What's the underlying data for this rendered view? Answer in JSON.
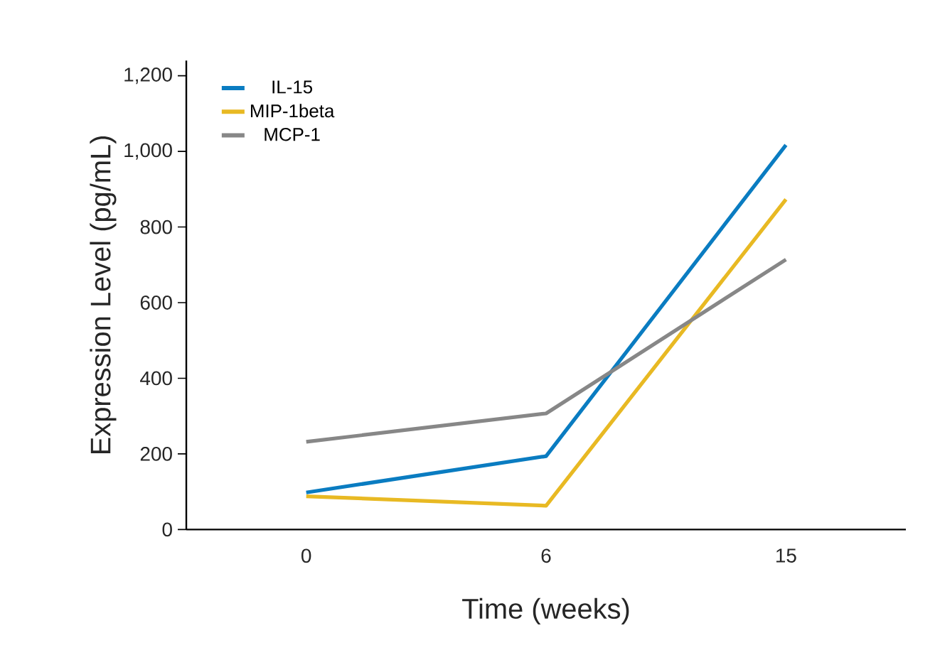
{
  "chart_data": {
    "type": "line",
    "xlabel": "Time (weeks)",
    "ylabel": "Expression Level (pg/mL)",
    "categories": [
      "0",
      "6",
      "15"
    ],
    "series": [
      {
        "name": "IL-15",
        "color": "#0a7cc1",
        "values": [
          98,
          194,
          1017
        ]
      },
      {
        "name": "MIP-1beta",
        "color": "#e8b923",
        "values": [
          88,
          63,
          873
        ]
      },
      {
        "name": "MCP-1",
        "color": "#878787",
        "values": [
          232,
          307,
          714
        ]
      }
    ],
    "ylim": [
      0,
      1240
    ],
    "yticks": [
      0,
      {
        "value": 200,
        "label": "200"
      },
      {
        "value": 400,
        "label": "400"
      },
      {
        "value": 600,
        "label": "600"
      },
      {
        "value": 800,
        "label": "800"
      },
      {
        "value": 1000,
        "label": "1,000"
      },
      {
        "value": 1200,
        "label": "1,200"
      }
    ],
    "legend": "top left",
    "marker": "none",
    "line_style": "solid"
  }
}
